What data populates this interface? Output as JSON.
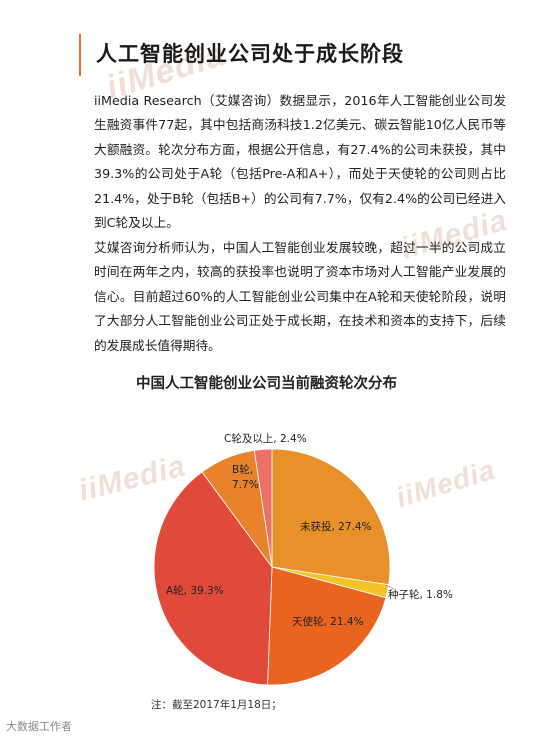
{
  "page": {
    "title": "人工智能创业公司处于成长阶段",
    "paragraphs": [
      "iiMedia Research（艾媒咨询）数据显示，2016年人工智能创业公司发生融资事件77起，其中包括商汤科技1.2亿美元、碳云智能10亿人民币等大额融资。轮次分布方面，根据公开信息，有27.4%的公司未获投，其中39.3%的公司处于A轮（包括Pre-A和A+），而处于天使轮的公司则占比21.4%，处于B轮（包括B+）的公司有7.7%，仅有2.4%的公司已经进入到C轮及以上。",
      "艾媒咨询分析师认为，中国人工智能创业发展较晚，超过一半的公司成立时间在两年之内，较高的获投率也说明了资本市场对人工智能产业发展的信心。目前超过60%的人工智能创业公司集中在A轮和天使轮阶段，说明了大部分人工智能创业公司正处于成长期，在技术和资本的支持下，后续的发展成长值得期待。"
    ],
    "note": "注：截至2017年1月18日；",
    "watermark": "iiMedia",
    "footer_logo": "大数据工作者"
  },
  "chart_data": {
    "type": "pie",
    "title": "中国人工智能创业公司当前融资轮次分布",
    "slices": [
      {
        "label": "未获投",
        "value": 27.4,
        "display": "未获投, 27.4%",
        "color": "#e8912a"
      },
      {
        "label": "种子轮",
        "value": 1.8,
        "display": "种子轮, 1.8%",
        "color": "#f2c428"
      },
      {
        "label": "天使轮",
        "value": 21.4,
        "display": "天使轮, 21.4%",
        "color": "#e8641f"
      },
      {
        "label": "A轮",
        "value": 39.3,
        "display": "A轮, 39.3%",
        "color": "#e04a3a"
      },
      {
        "label": "B轮",
        "value": 7.7,
        "display": "B轮,\n7.7%",
        "color": "#e9832b"
      },
      {
        "label": "C轮及以上",
        "value": 2.4,
        "display": "C轮及以上, 2.4%",
        "color": "#ea7068"
      }
    ]
  }
}
